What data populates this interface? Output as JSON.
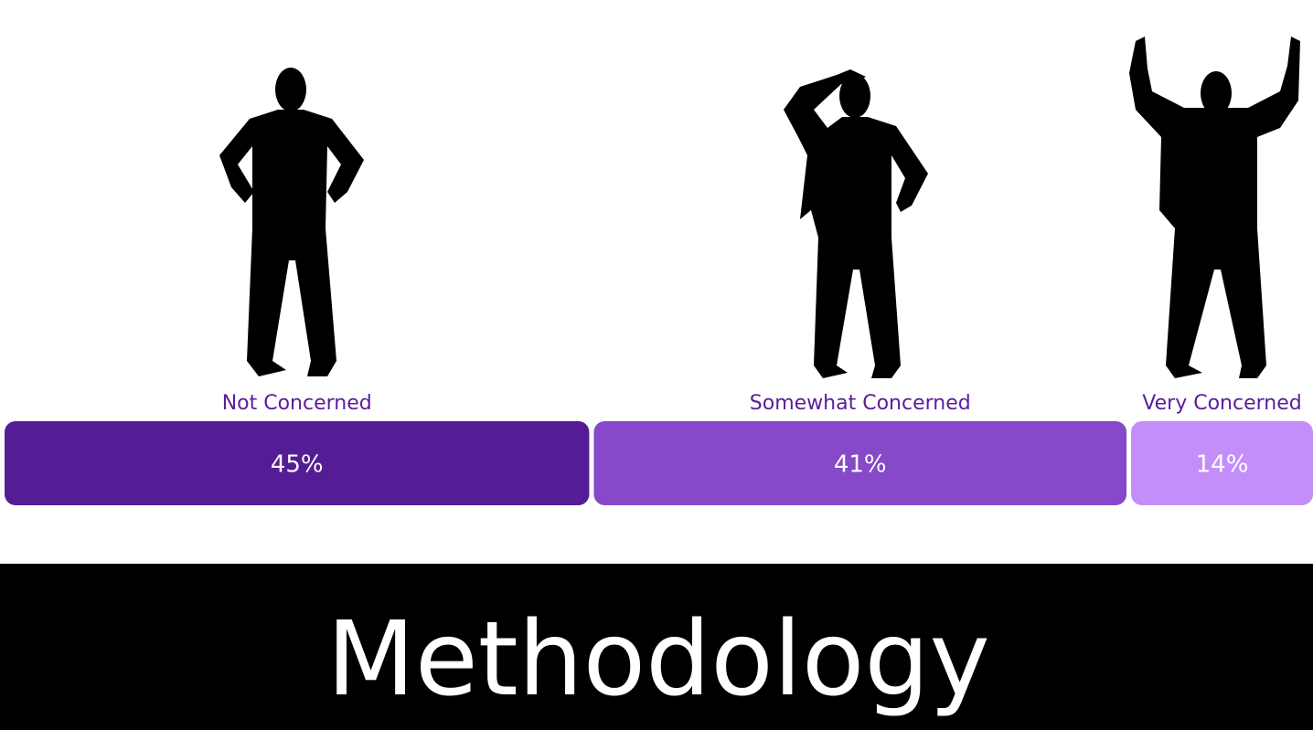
{
  "chart_data": {
    "type": "proportion-bar",
    "categories": [
      "Not Concerned",
      "Somewhat Concerned",
      "Very Concerned"
    ],
    "values": [
      45,
      41,
      14
    ],
    "value_labels": [
      "45%",
      "41%",
      "14%"
    ],
    "colors": [
      "#541d96",
      "#8549c9",
      "#c38efa"
    ]
  },
  "section": {
    "title": "Methodology"
  }
}
